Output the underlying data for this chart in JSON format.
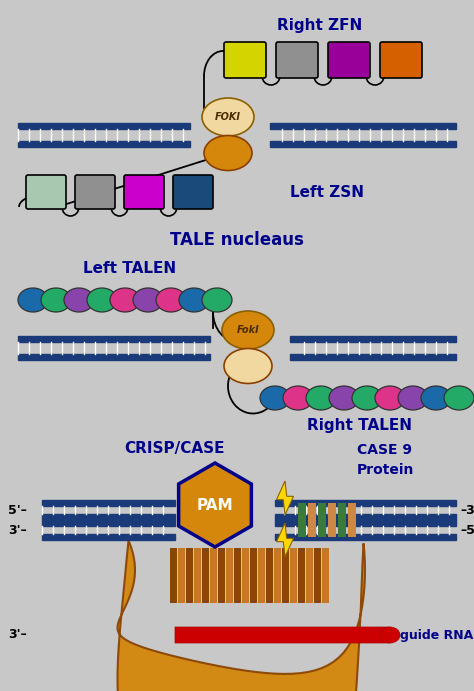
{
  "bg_color": "#c8c8c8",
  "dna_color": "#1a3a7a",
  "label_color": "#00008B",
  "foki_orange": "#d4870a",
  "foki_cream": "#f0d8a0",
  "title1": "Right ZFN",
  "title2": "Left ZSN",
  "title3": "TALE nucleaus",
  "title4": "Left TALEN",
  "title5": "Right TALEN",
  "title6": "CRISP/CASE",
  "title7": "CASE 9\nProtein",
  "zfn_right_colors": [
    "#d4d400",
    "#909090",
    "#990099",
    "#d46000"
  ],
  "zfn_left_colors": [
    "#a8c8b0",
    "#909090",
    "#cc00cc",
    "#1a4a7a"
  ],
  "talen_left_colors": [
    "#1a6aaa",
    "#22aa66",
    "#8844aa",
    "#22aa66",
    "#dd3388",
    "#8844aa",
    "#dd3388",
    "#1a6aaa",
    "#22aa66"
  ],
  "talen_right_colors": [
    "#1a6aaa",
    "#dd3388",
    "#22aa66",
    "#8844aa",
    "#22aa66",
    "#dd3388",
    "#8844aa",
    "#1a6aaa",
    "#22aa66"
  ],
  "cas9_color": "#d4870a",
  "pam_label": "PAM",
  "guide_rna_label": "guide RNA",
  "figw": 4.74,
  "figh": 6.91,
  "dpi": 100
}
